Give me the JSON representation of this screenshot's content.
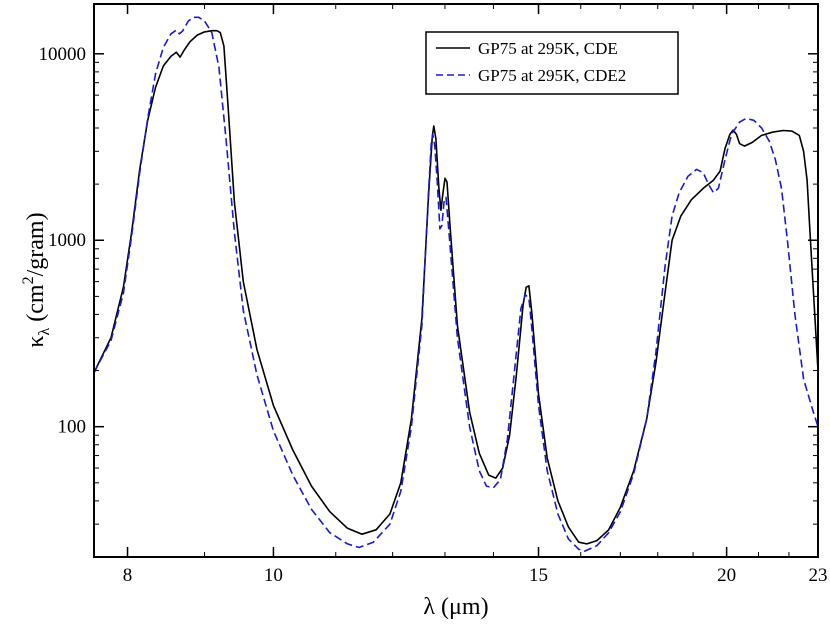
{
  "chart_data": {
    "type": "line",
    "title": "",
    "xlabel": "λ (μm)",
    "ylabel_main": "κ",
    "ylabel_sub": "λ",
    "ylabel_rest": " (cm",
    "ylabel_sup": "2",
    "ylabel_end": "/gram)",
    "x_scale": "log",
    "y_scale": "log",
    "xlim": [
      7.6,
      23
    ],
    "ylim": [
      20,
      18500
    ],
    "x_ticks": [
      8,
      10,
      15,
      20,
      23
    ],
    "x_tick_labels": [
      "8",
      "10",
      "15",
      "20",
      "23"
    ],
    "y_ticks": [
      100,
      1000,
      10000
    ],
    "y_tick_labels": [
      "100",
      "1000",
      "10000"
    ],
    "legend_position": "top-right",
    "series": [
      {
        "name": "GP75 at 295K, CDE",
        "color": "#000000",
        "dash": "solid",
        "points": [
          [
            7.6,
            195
          ],
          [
            7.8,
            300
          ],
          [
            7.95,
            560
          ],
          [
            8.05,
            1100
          ],
          [
            8.15,
            2400
          ],
          [
            8.25,
            4400
          ],
          [
            8.35,
            6600
          ],
          [
            8.45,
            8600
          ],
          [
            8.55,
            9700
          ],
          [
            8.62,
            10200
          ],
          [
            8.67,
            9600
          ],
          [
            8.72,
            10400
          ],
          [
            8.8,
            11600
          ],
          [
            8.9,
            12600
          ],
          [
            9.0,
            13100
          ],
          [
            9.1,
            13300
          ],
          [
            9.17,
            13300
          ],
          [
            9.22,
            13000
          ],
          [
            9.27,
            11000
          ],
          [
            9.33,
            5200
          ],
          [
            9.42,
            1600
          ],
          [
            9.55,
            600
          ],
          [
            9.75,
            260
          ],
          [
            10.0,
            130
          ],
          [
            10.3,
            75
          ],
          [
            10.6,
            48
          ],
          [
            10.9,
            35
          ],
          [
            11.2,
            28.5
          ],
          [
            11.45,
            26.5
          ],
          [
            11.7,
            28
          ],
          [
            11.95,
            34
          ],
          [
            12.15,
            50
          ],
          [
            12.35,
            110
          ],
          [
            12.55,
            380
          ],
          [
            12.68,
            1800
          ],
          [
            12.75,
            3600
          ],
          [
            12.78,
            4100
          ],
          [
            12.82,
            3500
          ],
          [
            12.88,
            1900
          ],
          [
            12.92,
            1450
          ],
          [
            12.96,
            1800
          ],
          [
            13.0,
            2150
          ],
          [
            13.04,
            2050
          ],
          [
            13.1,
            1200
          ],
          [
            13.25,
            350
          ],
          [
            13.5,
            120
          ],
          [
            13.7,
            72
          ],
          [
            13.9,
            55
          ],
          [
            14.05,
            53
          ],
          [
            14.2,
            60
          ],
          [
            14.35,
            90
          ],
          [
            14.5,
            190
          ],
          [
            14.65,
            450
          ],
          [
            14.72,
            560
          ],
          [
            14.78,
            570
          ],
          [
            14.85,
            400
          ],
          [
            15.0,
            150
          ],
          [
            15.2,
            68
          ],
          [
            15.45,
            40
          ],
          [
            15.7,
            29
          ],
          [
            15.95,
            24
          ],
          [
            16.15,
            23.5
          ],
          [
            16.4,
            24.5
          ],
          [
            16.7,
            28
          ],
          [
            17.0,
            37
          ],
          [
            17.35,
            58
          ],
          [
            17.7,
            110
          ],
          [
            17.95,
            220
          ],
          [
            18.2,
            520
          ],
          [
            18.4,
            1000
          ],
          [
            18.65,
            1350
          ],
          [
            18.95,
            1650
          ],
          [
            19.3,
            1900
          ],
          [
            19.6,
            2100
          ],
          [
            19.8,
            2350
          ],
          [
            19.95,
            3100
          ],
          [
            20.1,
            3700
          ],
          [
            20.2,
            3900
          ],
          [
            20.3,
            3700
          ],
          [
            20.4,
            3300
          ],
          [
            20.55,
            3200
          ],
          [
            20.8,
            3350
          ],
          [
            21.1,
            3650
          ],
          [
            21.45,
            3800
          ],
          [
            21.8,
            3880
          ],
          [
            22.1,
            3850
          ],
          [
            22.35,
            3650
          ],
          [
            22.5,
            3000
          ],
          [
            22.62,
            2100
          ],
          [
            22.72,
            1100
          ],
          [
            22.85,
            500
          ],
          [
            23.0,
            200
          ]
        ]
      },
      {
        "name": "GP75 at 295K, CDE2",
        "color": "#1a1ad0",
        "dash": "dashed",
        "points": [
          [
            7.6,
            195
          ],
          [
            7.8,
            290
          ],
          [
            7.95,
            520
          ],
          [
            8.05,
            1050
          ],
          [
            8.15,
            2300
          ],
          [
            8.25,
            4500
          ],
          [
            8.35,
            7800
          ],
          [
            8.45,
            10800
          ],
          [
            8.55,
            12800
          ],
          [
            8.62,
            13400
          ],
          [
            8.66,
            12800
          ],
          [
            8.7,
            13200
          ],
          [
            8.78,
            15000
          ],
          [
            8.85,
            15700
          ],
          [
            8.92,
            15700
          ],
          [
            9.0,
            15000
          ],
          [
            9.1,
            13000
          ],
          [
            9.2,
            8500
          ],
          [
            9.3,
            3500
          ],
          [
            9.42,
            1100
          ],
          [
            9.55,
            420
          ],
          [
            9.75,
            190
          ],
          [
            10.0,
            95
          ],
          [
            10.3,
            55
          ],
          [
            10.6,
            36
          ],
          [
            10.9,
            27
          ],
          [
            11.2,
            23.5
          ],
          [
            11.4,
            22.5
          ],
          [
            11.65,
            24
          ],
          [
            11.95,
            30
          ],
          [
            12.15,
            45
          ],
          [
            12.35,
            100
          ],
          [
            12.55,
            350
          ],
          [
            12.67,
            1700
          ],
          [
            12.73,
            3300
          ],
          [
            12.76,
            3700
          ],
          [
            12.8,
            3200
          ],
          [
            12.85,
            2000
          ],
          [
            12.9,
            1150
          ],
          [
            12.94,
            1200
          ],
          [
            12.98,
            1600
          ],
          [
            13.02,
            1700
          ],
          [
            13.08,
            1100
          ],
          [
            13.25,
            300
          ],
          [
            13.5,
            100
          ],
          [
            13.7,
            58
          ],
          [
            13.85,
            48
          ],
          [
            14.0,
            47
          ],
          [
            14.15,
            52
          ],
          [
            14.3,
            85
          ],
          [
            14.45,
            190
          ],
          [
            14.6,
            430
          ],
          [
            14.7,
            510
          ],
          [
            14.78,
            490
          ],
          [
            14.85,
            330
          ],
          [
            15.0,
            130
          ],
          [
            15.2,
            58
          ],
          [
            15.45,
            34
          ],
          [
            15.7,
            25
          ],
          [
            15.95,
            22
          ],
          [
            16.1,
            21.5
          ],
          [
            16.4,
            23
          ],
          [
            16.7,
            27
          ],
          [
            17.0,
            35
          ],
          [
            17.35,
            56
          ],
          [
            17.7,
            110
          ],
          [
            17.95,
            250
          ],
          [
            18.2,
            720
          ],
          [
            18.4,
            1350
          ],
          [
            18.6,
            1800
          ],
          [
            18.85,
            2200
          ],
          [
            19.1,
            2400
          ],
          [
            19.3,
            2300
          ],
          [
            19.45,
            2000
          ],
          [
            19.6,
            1800
          ],
          [
            19.75,
            1900
          ],
          [
            19.95,
            2700
          ],
          [
            20.15,
            3700
          ],
          [
            20.4,
            4300
          ],
          [
            20.6,
            4500
          ],
          [
            20.85,
            4400
          ],
          [
            21.1,
            4000
          ],
          [
            21.35,
            3400
          ],
          [
            21.55,
            2700
          ],
          [
            21.75,
            1900
          ],
          [
            21.95,
            1000
          ],
          [
            22.2,
            400
          ],
          [
            22.5,
            180
          ],
          [
            22.8,
            125
          ],
          [
            23.0,
            100
          ]
        ]
      }
    ]
  }
}
